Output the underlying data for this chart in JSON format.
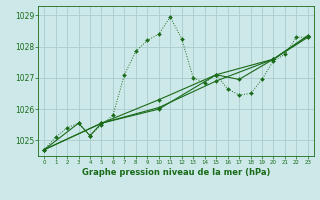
{
  "title": "Graphe pression niveau de la mer (hPa)",
  "bg_color": "#cce8e8",
  "grid_color": "#aacccc",
  "line_color": "#1a6b1a",
  "xlim": [
    -0.5,
    23.5
  ],
  "ylim": [
    1024.5,
    1029.3
  ],
  "yticks": [
    1025,
    1026,
    1027,
    1028,
    1029
  ],
  "xticks": [
    0,
    1,
    2,
    3,
    4,
    5,
    6,
    7,
    8,
    9,
    10,
    11,
    12,
    13,
    14,
    15,
    16,
    17,
    18,
    19,
    20,
    21,
    22,
    23
  ],
  "series1": [
    [
      0,
      1024.7
    ],
    [
      1,
      1025.1
    ],
    [
      2,
      1025.4
    ],
    [
      3,
      1025.55
    ],
    [
      4,
      1025.15
    ],
    [
      5,
      1025.5
    ],
    [
      6,
      1025.8
    ],
    [
      7,
      1027.1
    ],
    [
      8,
      1027.85
    ],
    [
      9,
      1028.2
    ],
    [
      10,
      1028.4
    ],
    [
      11,
      1028.95
    ],
    [
      12,
      1028.25
    ],
    [
      13,
      1027.0
    ],
    [
      14,
      1026.85
    ],
    [
      15,
      1027.1
    ],
    [
      16,
      1026.65
    ],
    [
      17,
      1026.45
    ],
    [
      18,
      1026.5
    ],
    [
      19,
      1026.95
    ],
    [
      20,
      1027.55
    ],
    [
      21,
      1027.75
    ],
    [
      22,
      1028.3
    ],
    [
      23,
      1028.3
    ]
  ],
  "series2": [
    [
      0,
      1024.7
    ],
    [
      3,
      1025.55
    ],
    [
      4,
      1025.15
    ],
    [
      5,
      1025.55
    ],
    [
      10,
      1026.0
    ],
    [
      15,
      1027.1
    ],
    [
      20,
      1027.6
    ],
    [
      23,
      1028.3
    ]
  ],
  "series3": [
    [
      0,
      1024.7
    ],
    [
      5,
      1025.55
    ],
    [
      10,
      1026.05
    ],
    [
      15,
      1026.9
    ],
    [
      20,
      1027.6
    ],
    [
      23,
      1028.35
    ]
  ],
  "series4": [
    [
      0,
      1024.7
    ],
    [
      5,
      1025.55
    ],
    [
      10,
      1026.3
    ],
    [
      15,
      1027.1
    ],
    [
      17,
      1026.95
    ],
    [
      20,
      1027.6
    ],
    [
      23,
      1028.35
    ]
  ]
}
